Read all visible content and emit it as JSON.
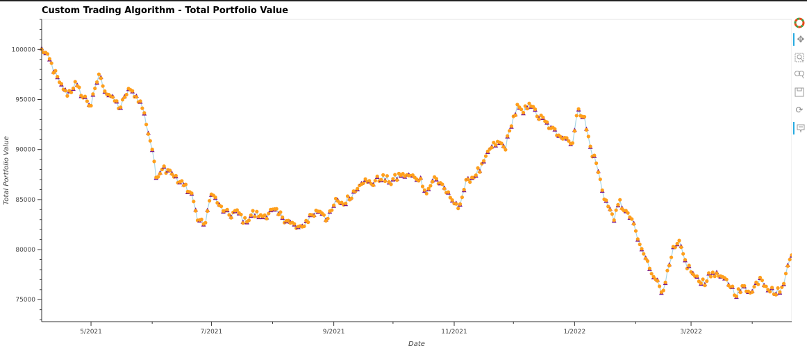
{
  "chart_data": {
    "type": "line",
    "title": "Custom Trading Algorithm - Total Portfolio Value",
    "xlabel": "Date",
    "ylabel": "Total Portfolio Value",
    "x_ticks": [
      "5/2021",
      "7/2021",
      "9/2021",
      "11/2021",
      "1/2022",
      "3/2022"
    ],
    "y_ticks": [
      75000,
      80000,
      85000,
      90000,
      95000,
      100000
    ],
    "xlim": [
      "2021-04-06",
      "2022-04-21"
    ],
    "ylim": [
      72800,
      103000
    ],
    "grid": false,
    "series": [
      {
        "style": "line",
        "color": "#a6d5e6",
        "points": [
          [
            "2021-04-06",
            100000
          ],
          [
            "2021-04-09",
            99300
          ],
          [
            "2021-04-12",
            98000
          ],
          [
            "2021-04-15",
            96600
          ],
          [
            "2021-04-19",
            95500
          ],
          [
            "2021-04-23",
            96500
          ],
          [
            "2021-04-27",
            95300
          ],
          [
            "2021-05-01",
            94400
          ],
          [
            "2021-05-05",
            97500
          ],
          [
            "2021-05-08",
            96000
          ],
          [
            "2021-05-12",
            95000
          ],
          [
            "2021-05-16",
            94200
          ],
          [
            "2021-05-20",
            96000
          ],
          [
            "2021-05-24",
            95300
          ],
          [
            "2021-05-27",
            94300
          ],
          [
            "2021-05-29",
            92600
          ],
          [
            "2021-06-01",
            90000
          ],
          [
            "2021-06-03",
            87200
          ],
          [
            "2021-06-06",
            88200
          ],
          [
            "2021-06-10",
            88000
          ],
          [
            "2021-06-14",
            86800
          ],
          [
            "2021-06-18",
            86300
          ],
          [
            "2021-06-21",
            85600
          ],
          [
            "2021-06-24",
            83000
          ],
          [
            "2021-06-28",
            82600
          ],
          [
            "2021-07-01",
            85800
          ],
          [
            "2021-07-05",
            84300
          ],
          [
            "2021-07-10",
            83400
          ],
          [
            "2021-07-14",
            83800
          ],
          [
            "2021-07-18",
            82800
          ],
          [
            "2021-07-22",
            83600
          ],
          [
            "2021-07-27",
            83300
          ],
          [
            "2021-08-01",
            83900
          ],
          [
            "2021-08-06",
            83300
          ],
          [
            "2021-08-11",
            82500
          ],
          [
            "2021-08-15",
            82000
          ],
          [
            "2021-08-20",
            83300
          ],
          [
            "2021-08-25",
            84000
          ],
          [
            "2021-08-29",
            83000
          ],
          [
            "2021-09-02",
            84800
          ],
          [
            "2021-09-06",
            84600
          ],
          [
            "2021-09-10",
            85400
          ],
          [
            "2021-09-15",
            86900
          ],
          [
            "2021-09-20",
            86600
          ],
          [
            "2021-09-25",
            87200
          ],
          [
            "2021-09-30",
            86800
          ],
          [
            "2021-10-05",
            87500
          ],
          [
            "2021-10-10",
            87300
          ],
          [
            "2021-10-15",
            87000
          ],
          [
            "2021-10-18",
            85700
          ],
          [
            "2021-10-22",
            87100
          ],
          [
            "2021-10-26",
            86500
          ],
          [
            "2021-10-30",
            85000
          ],
          [
            "2021-11-03",
            84200
          ],
          [
            "2021-11-07",
            86600
          ],
          [
            "2021-11-11",
            87400
          ],
          [
            "2021-11-15",
            88200
          ],
          [
            "2021-11-19",
            90000
          ],
          [
            "2021-11-23",
            90700
          ],
          [
            "2021-11-27",
            90200
          ],
          [
            "2021-11-30",
            92600
          ],
          [
            "2021-12-03",
            94200
          ],
          [
            "2021-12-06",
            93600
          ],
          [
            "2021-12-09",
            94800
          ],
          [
            "2021-12-13",
            93400
          ],
          [
            "2021-12-17",
            92800
          ],
          [
            "2021-12-20",
            92000
          ],
          [
            "2021-12-24",
            91600
          ],
          [
            "2021-12-28",
            91100
          ],
          [
            "2021-12-31",
            90700
          ],
          [
            "2022-01-03",
            94200
          ],
          [
            "2022-01-06",
            93000
          ],
          [
            "2022-01-09",
            90200
          ],
          [
            "2022-01-12",
            88600
          ],
          [
            "2022-01-15",
            86000
          ],
          [
            "2022-01-18",
            84200
          ],
          [
            "2022-01-21",
            83200
          ],
          [
            "2022-01-24",
            84700
          ],
          [
            "2022-01-27",
            83700
          ],
          [
            "2022-01-30",
            83000
          ],
          [
            "2022-02-02",
            81000
          ],
          [
            "2022-02-05",
            79500
          ],
          [
            "2022-02-08",
            78200
          ],
          [
            "2022-02-11",
            77200
          ],
          [
            "2022-02-14",
            75800
          ],
          [
            "2022-02-17",
            77500
          ],
          [
            "2022-02-20",
            79900
          ],
          [
            "2022-02-23",
            80600
          ],
          [
            "2022-02-26",
            78800
          ],
          [
            "2022-03-01",
            77800
          ],
          [
            "2022-03-04",
            77000
          ],
          [
            "2022-03-08",
            76800
          ],
          [
            "2022-03-12",
            77700
          ],
          [
            "2022-03-16",
            77200
          ],
          [
            "2022-03-20",
            76600
          ],
          [
            "2022-03-24",
            75600
          ],
          [
            "2022-03-28",
            76200
          ],
          [
            "2022-04-01",
            75800
          ],
          [
            "2022-04-05",
            77300
          ],
          [
            "2022-04-09",
            76200
          ],
          [
            "2022-04-13",
            75600
          ],
          [
            "2022-04-17",
            76400
          ],
          [
            "2022-04-19",
            78800
          ],
          [
            "2022-04-21",
            79600
          ]
        ]
      },
      {
        "style": "triangle-marker",
        "color": "#7a1a8c"
      },
      {
        "style": "circle-marker",
        "color": "#ff9f1c"
      }
    ]
  },
  "toolbar": {
    "icons": [
      "bokeh-logo-icon",
      "pan-icon",
      "box-zoom-icon",
      "wheel-zoom-icon",
      "save-icon",
      "reset-icon",
      "hover-icon"
    ]
  }
}
